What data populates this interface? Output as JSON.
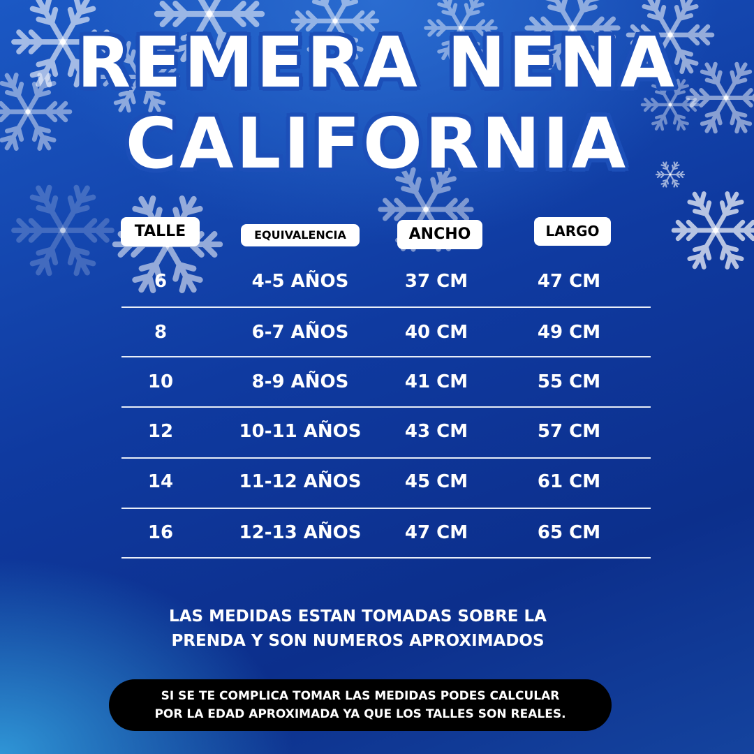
{
  "title": {
    "line1": "REMERA NENA",
    "line2": "CALIFORNIA"
  },
  "colors": {
    "background": "#0f3aa0",
    "title_outline": "#1c4fb8",
    "header_bg": "#ffffff",
    "note_pill": "#000000"
  },
  "table": {
    "headers": [
      "TALLE",
      "EQUIVALENCIA",
      "ANCHO",
      "LARGO"
    ],
    "rows": [
      [
        "6",
        "4-5 AÑOS",
        "37 CM",
        "47 CM"
      ],
      [
        "8",
        "6-7 AÑOS",
        "40 CM",
        "49 CM"
      ],
      [
        "10",
        "8-9 AÑOS",
        "41 CM",
        "55 CM"
      ],
      [
        "12",
        "10-11 AÑOS",
        "43 CM",
        "57 CM"
      ],
      [
        "14",
        "11-12 AÑOS",
        "45 CM",
        "61 CM"
      ],
      [
        "16",
        "12-13 AÑOS",
        "47 CM",
        "65 CM"
      ]
    ]
  },
  "note": {
    "line1": "LAS MEDIDAS ESTAN TOMADAS SOBRE LA",
    "line2": "PRENDA Y SON NUMEROS APROXIMADOS"
  },
  "callout": {
    "line1": "SI SE TE COMPLICA TOMAR LAS MEDIDAS PODES CALCULAR",
    "line2": "POR LA EDAD APROXIMADA YA QUE LOS TALLES SON REALES."
  },
  "decoration": {
    "icon": "snowflake-icon"
  }
}
